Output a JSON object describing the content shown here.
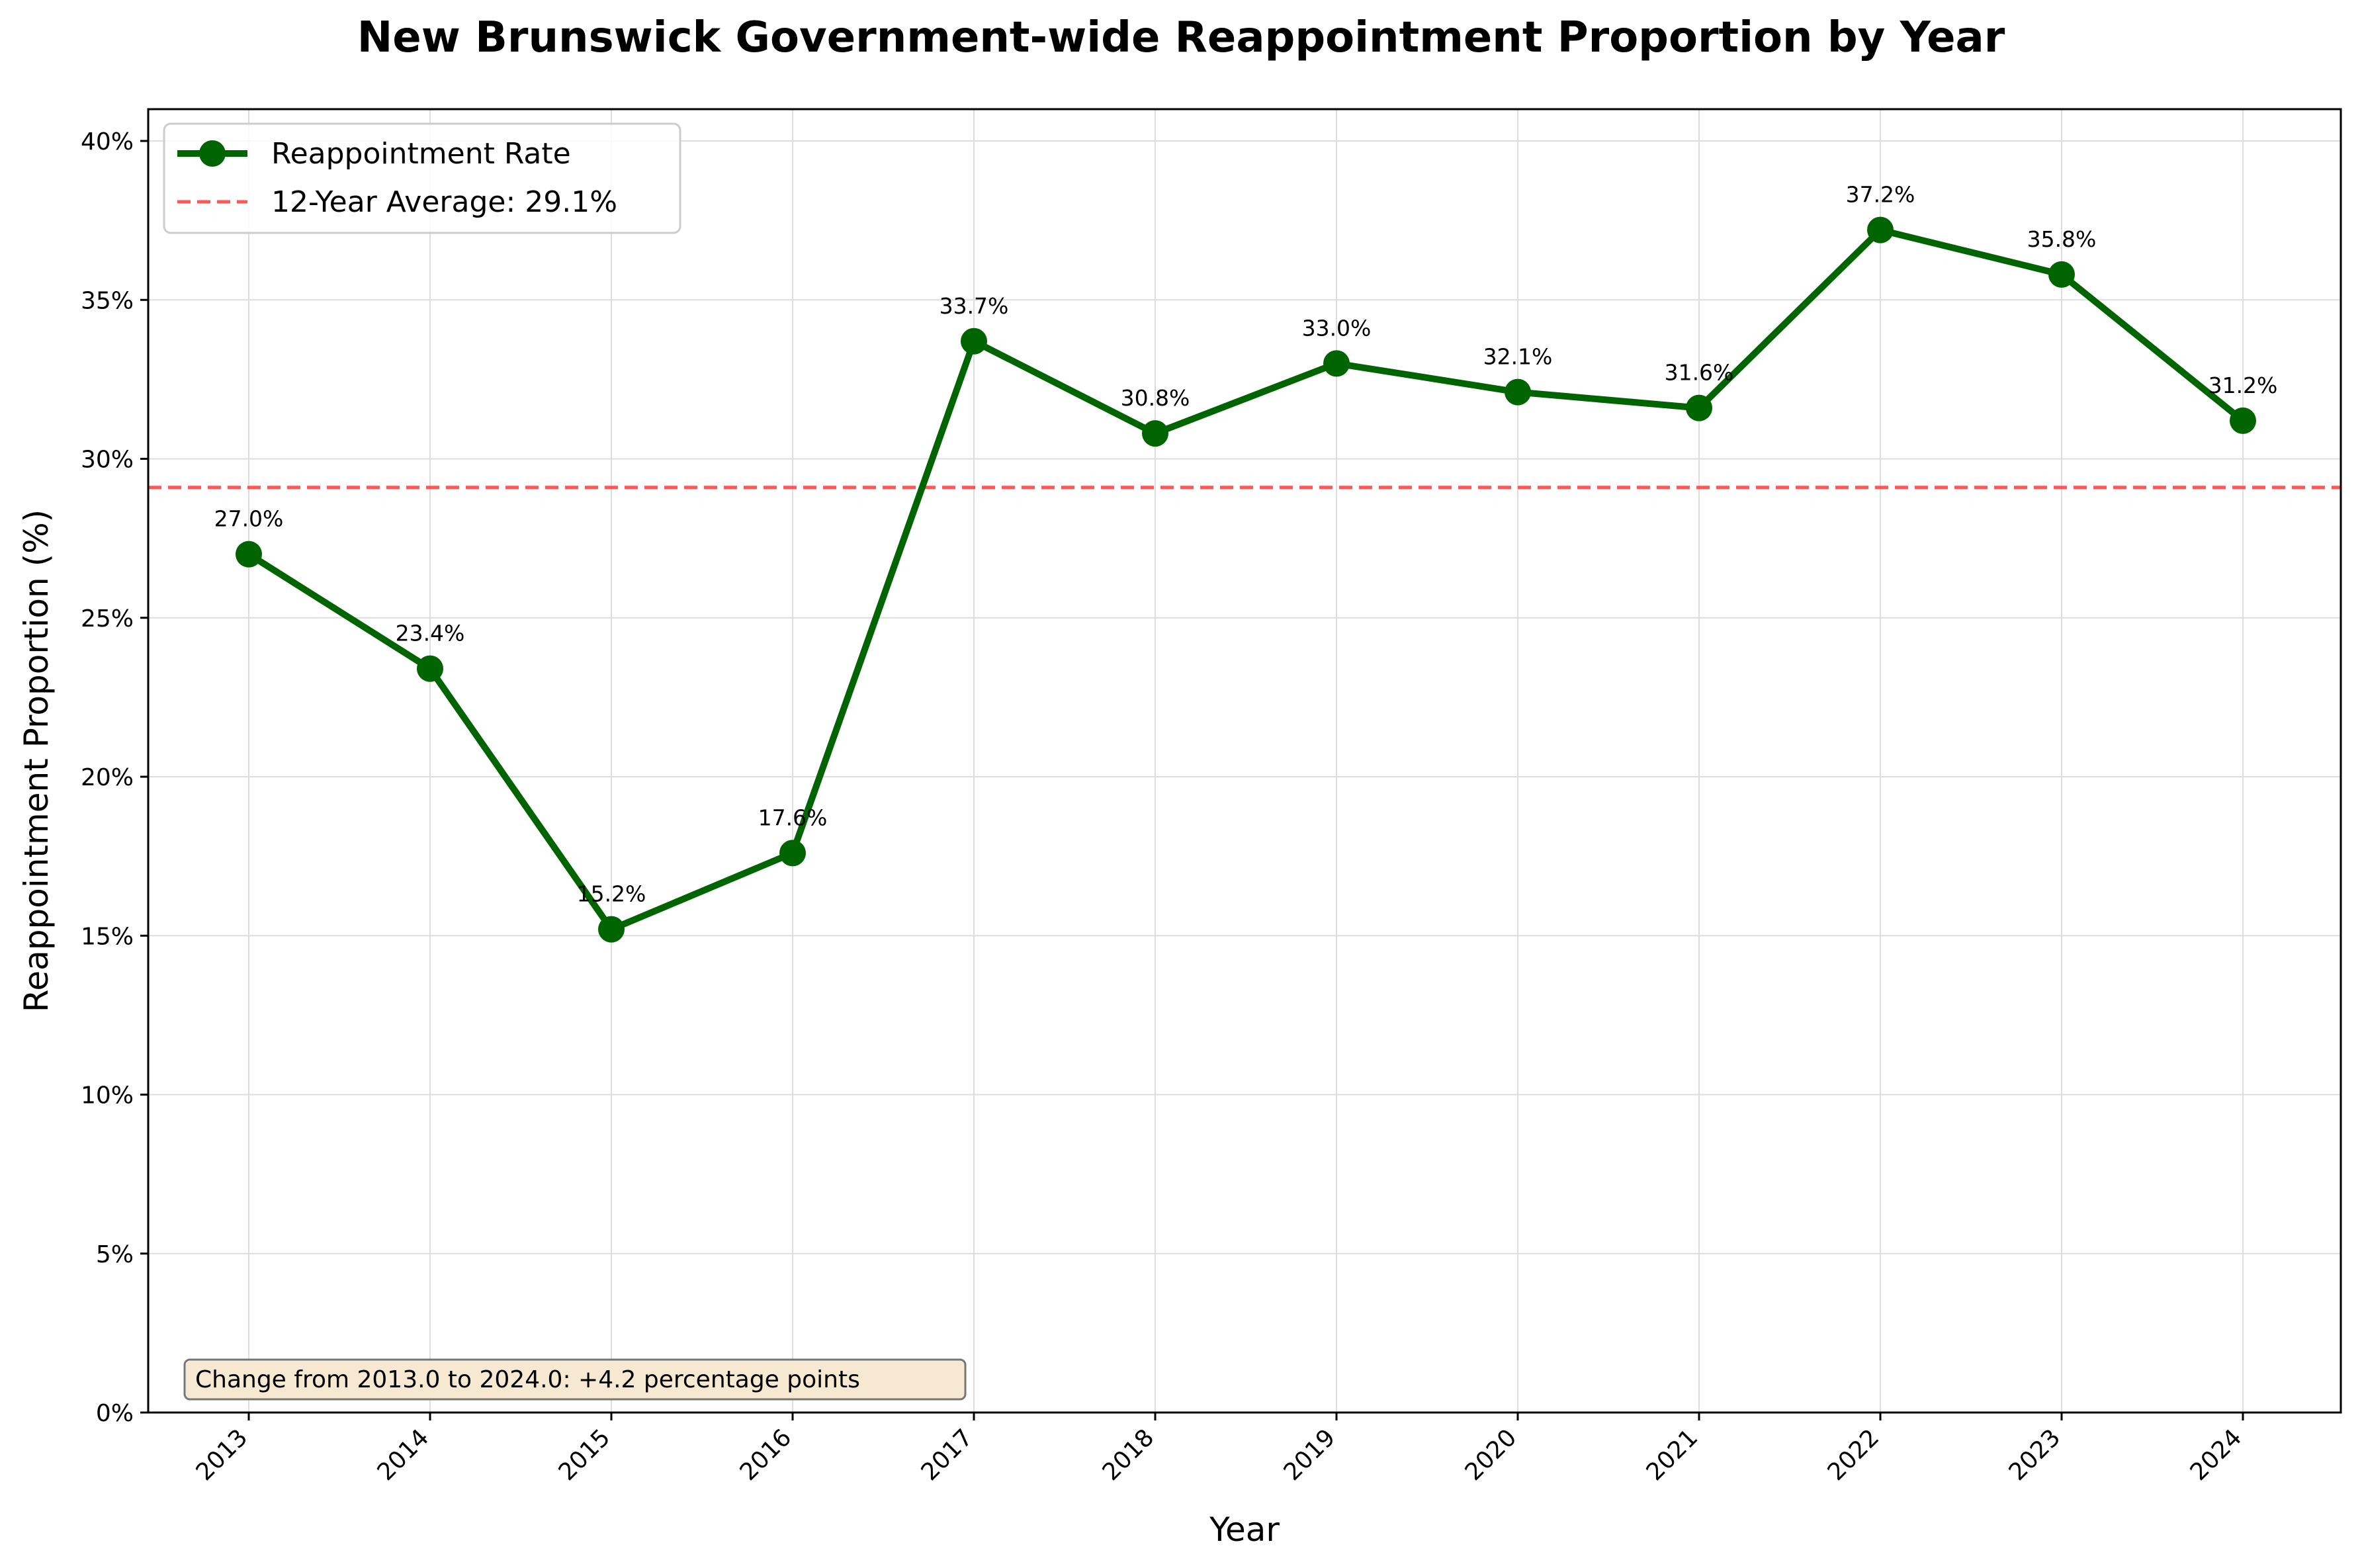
{
  "chart_data": {
    "type": "line",
    "title": "New Brunswick Government-wide Reappointment Proportion by Year",
    "xlabel": "Year",
    "ylabel": "Reappointment Proportion (%)",
    "categories": [
      "2013",
      "2014",
      "2015",
      "2016",
      "2017",
      "2018",
      "2019",
      "2020",
      "2021",
      "2022",
      "2023",
      "2024"
    ],
    "series": [
      {
        "name": "Reappointment Rate",
        "values": [
          27.0,
          23.4,
          15.2,
          17.6,
          33.7,
          30.8,
          33.0,
          32.1,
          31.6,
          37.2,
          35.8,
          31.2
        ],
        "labels": [
          "27.0%",
          "23.4%",
          "15.2%",
          "17.6%",
          "33.7%",
          "30.8%",
          "33.0%",
          "32.1%",
          "31.6%",
          "37.2%",
          "35.8%",
          "31.2%"
        ],
        "color": "#006400"
      }
    ],
    "reference_line": {
      "name": "12-Year Average: 29.1%",
      "value": 29.1,
      "color": "#ff4444",
      "style": "dashed"
    },
    "ylim": [
      0,
      41
    ],
    "yticks": [
      0,
      5,
      10,
      15,
      20,
      25,
      30,
      35,
      40
    ],
    "ytick_labels": [
      "0%",
      "5%",
      "10%",
      "15%",
      "20%",
      "25%",
      "30%",
      "35%",
      "40%"
    ],
    "grid": true,
    "legend_position": "top-left",
    "annotation": {
      "text": "Change from 2013.0 to 2024.0: +4.2 percentage points",
      "position": "bottom-left",
      "background": "#f7e9d1"
    }
  }
}
